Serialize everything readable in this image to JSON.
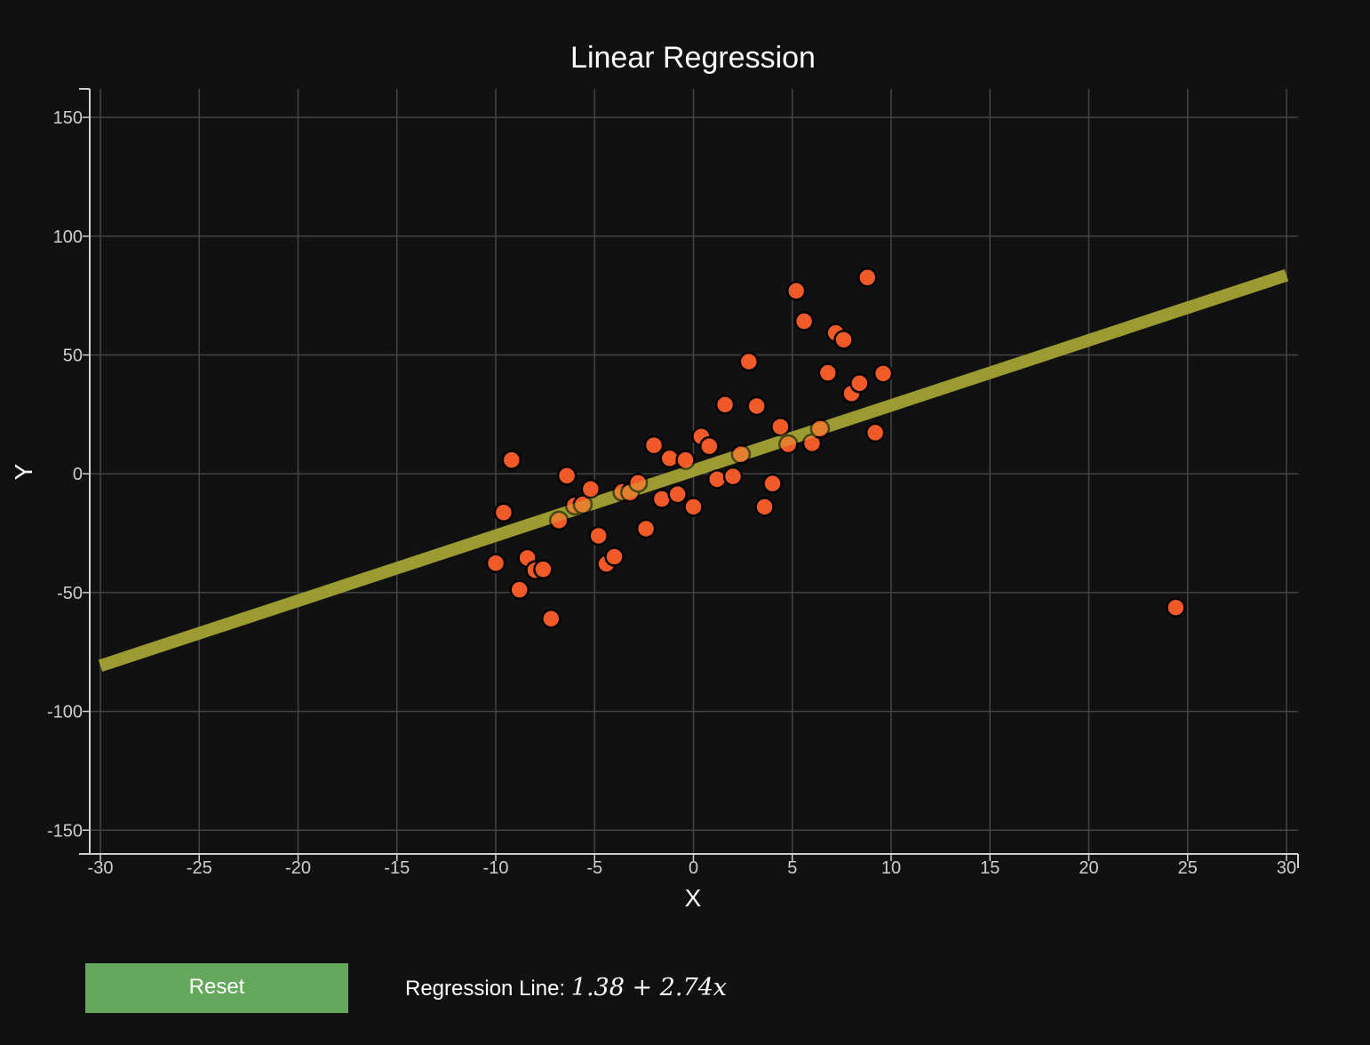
{
  "chart_data": {
    "type": "scatter",
    "title": "Linear Regression",
    "xlabel": "X",
    "ylabel": "Y",
    "xlim": [
      -30,
      30
    ],
    "ylim": [
      -160,
      162
    ],
    "grid": true,
    "x_ticks": [
      -30,
      -25,
      -20,
      -15,
      -10,
      -5,
      0,
      5,
      10,
      15,
      20,
      25,
      30
    ],
    "y_ticks": [
      -150,
      -100,
      -50,
      0,
      50,
      100,
      150
    ],
    "x_tick_labels": [
      "-30",
      "-25",
      "-20",
      "-15",
      "-10",
      "-5",
      "0",
      "5",
      "10",
      "15",
      "20",
      "25",
      "30"
    ],
    "y_tick_labels": [
      "-150",
      "-100",
      "-50",
      "0",
      "50",
      "100",
      "150"
    ],
    "regression_line": {
      "intercept": 1.38,
      "slope": 2.74,
      "x_range": [
        -30,
        30
      ],
      "color": "#8a8a2e"
    },
    "point_color": "#f05a28",
    "points": [
      {
        "x": -10.0,
        "y": -37.6
      },
      {
        "x": -9.6,
        "y": -16.3
      },
      {
        "x": -9.2,
        "y": 5.8
      },
      {
        "x": -8.8,
        "y": -48.8
      },
      {
        "x": -8.4,
        "y": -35.4
      },
      {
        "x": -8.0,
        "y": -40.6
      },
      {
        "x": -7.6,
        "y": -40.2
      },
      {
        "x": -7.2,
        "y": -61.0
      },
      {
        "x": -6.8,
        "y": -19.7
      },
      {
        "x": -6.4,
        "y": -0.8
      },
      {
        "x": -6.0,
        "y": -13.3
      },
      {
        "x": -5.6,
        "y": -12.9
      },
      {
        "x": -5.2,
        "y": -6.4
      },
      {
        "x": -4.8,
        "y": -26.1
      },
      {
        "x": -4.4,
        "y": -37.9
      },
      {
        "x": -4.0,
        "y": -34.9
      },
      {
        "x": -3.6,
        "y": -7.6
      },
      {
        "x": -3.2,
        "y": -7.9
      },
      {
        "x": -2.8,
        "y": -3.8
      },
      {
        "x": -2.4,
        "y": -23.1
      },
      {
        "x": -2.0,
        "y": 12.0
      },
      {
        "x": -1.6,
        "y": -10.6
      },
      {
        "x": -1.2,
        "y": 6.5
      },
      {
        "x": -0.8,
        "y": -8.6
      },
      {
        "x": -0.4,
        "y": 5.8
      },
      {
        "x": 0.0,
        "y": -13.9
      },
      {
        "x": 0.4,
        "y": 15.7
      },
      {
        "x": 0.8,
        "y": 11.6
      },
      {
        "x": 1.2,
        "y": -2.3
      },
      {
        "x": 1.6,
        "y": 29.1
      },
      {
        "x": 2.0,
        "y": -1.1
      },
      {
        "x": 2.4,
        "y": 8.2
      },
      {
        "x": 2.8,
        "y": 47.2
      },
      {
        "x": 3.2,
        "y": 28.5
      },
      {
        "x": 3.6,
        "y": -13.9
      },
      {
        "x": 4.0,
        "y": -4.1
      },
      {
        "x": 4.4,
        "y": 19.8
      },
      {
        "x": 4.8,
        "y": 12.4
      },
      {
        "x": 5.2,
        "y": 77.0
      },
      {
        "x": 5.6,
        "y": 64.2
      },
      {
        "x": 6.0,
        "y": 12.8
      },
      {
        "x": 6.4,
        "y": 19.0
      },
      {
        "x": 6.8,
        "y": 42.5
      },
      {
        "x": 7.2,
        "y": 59.3
      },
      {
        "x": 7.6,
        "y": 56.4
      },
      {
        "x": 8.0,
        "y": 33.8
      },
      {
        "x": 8.4,
        "y": 38.1
      },
      {
        "x": 8.8,
        "y": 82.6
      },
      {
        "x": 9.2,
        "y": 17.3
      },
      {
        "x": 9.6,
        "y": 42.2
      },
      {
        "x": 24.4,
        "y": -56.3
      }
    ]
  },
  "controls": {
    "reset_label": "Reset",
    "regression_prefix": "Regression Line: ",
    "regression_equation": "1.38 + 2.74x"
  }
}
